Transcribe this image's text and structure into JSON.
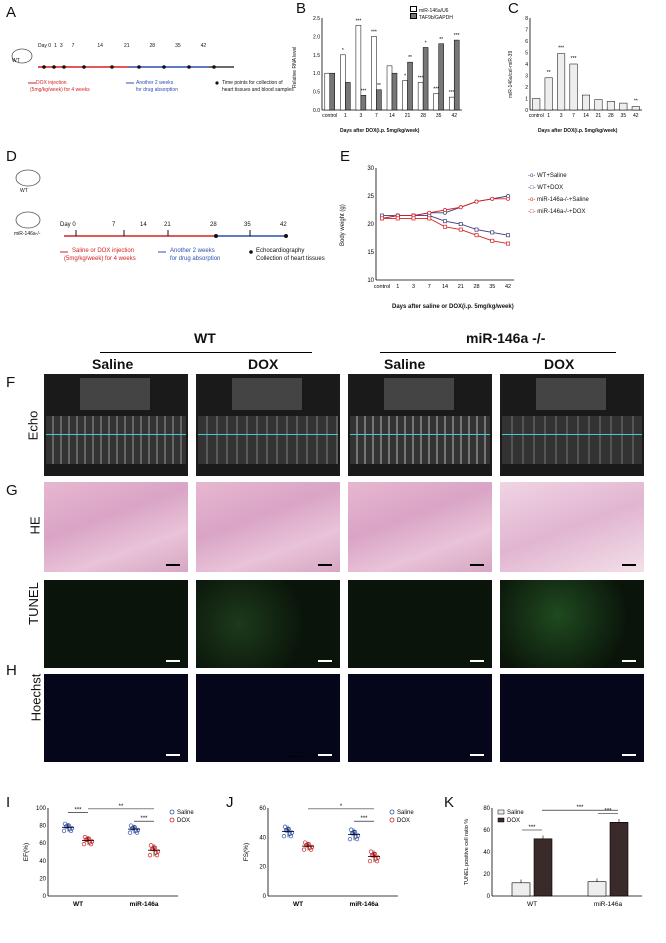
{
  "panels": {
    "A": {
      "letter": "A",
      "wt_label": "WT",
      "timeline_days": [
        "Day 0",
        "1",
        "3",
        "7",
        "14",
        "21",
        "28",
        "35",
        "42"
      ],
      "legend_dox": "DOX injection",
      "legend_dox_dose": "(5mg/kg/week) for 4 weeks",
      "legend_abs": "Another 2 weeks",
      "legend_abs2": "for drug absorption",
      "legend_time": "Time points for collection of",
      "legend_time2": "heart tissues and blood samples"
    },
    "B": {
      "letter": "B",
      "ylabel": "Relative RNA level",
      "xlabel": "Days after DOX(i.p. 5mg/kg/week)",
      "legend": [
        "miR-146a/U6",
        "TAF9b/GAPDH"
      ]
    },
    "C": {
      "letter": "C",
      "ylabel": "miR-146a/cel-miR-39",
      "xlabel": "Days after DOX(i.p. 5mg/kg/week)"
    },
    "D": {
      "letter": "D",
      "wt_label": "WT",
      "ko_label": "miR-146a-/-",
      "timeline_days": [
        "Day 0",
        "7",
        "14",
        "21",
        "28",
        "35",
        "42"
      ],
      "legend_inj": "Saline or DOX injection",
      "legend_inj_dose": "(5mg/kg/week) for 4 weeks",
      "legend_abs": "Another 2 weeks",
      "legend_abs2": "for drug absorption",
      "legend_echo": "Echocardiography",
      "legend_coll": "Collection of heart tissues"
    },
    "E": {
      "letter": "E",
      "ylabel": "Body weight (g)",
      "xlabel": "Days after saline or DOX(i.p. 5mg/kg/week)",
      "legend": [
        "WT+Saline",
        "WT+DOX",
        "miR-146a-/-+Saline",
        "miR-146a-/-+DOX"
      ]
    },
    "headers": {
      "wt": "WT",
      "ko": "miR-146a  -/-",
      "saline1": "Saline",
      "dox1": "DOX",
      "saline2": "Saline",
      "dox2": "DOX"
    },
    "F": {
      "letter": "F",
      "row": "Echo"
    },
    "G": {
      "letter": "G",
      "row": "HE",
      "row2": "TUNEL"
    },
    "H": {
      "letter": "H",
      "row": "Hoechst"
    },
    "I": {
      "letter": "I",
      "ylabel": "EF(%)",
      "groups": [
        "WT",
        "miR-146a"
      ],
      "legend": [
        "Saline",
        "DOX"
      ],
      "sig": [
        "***",
        "**",
        "***"
      ]
    },
    "J": {
      "letter": "J",
      "ylabel": "FS(%)",
      "groups": [
        "WT",
        "miR-146a"
      ],
      "legend": [
        "Saline",
        "DOX"
      ],
      "sig": [
        "***",
        "*",
        "***"
      ]
    },
    "K": {
      "letter": "K",
      "ylabel": "TUNEL positive cell ratio %",
      "groups": [
        "WT",
        "miR-146a"
      ],
      "legend": [
        "Saline",
        "DOX"
      ],
      "sig": [
        "***",
        "***",
        "***"
      ]
    }
  },
  "colors": {
    "red": "#d62020",
    "blue": "#2d4fb0",
    "navy": "#3a3a7a",
    "gray": "#7a7a7a",
    "dark": "#222"
  },
  "chart_data": [
    {
      "id": "B",
      "type": "bar",
      "categories": [
        "control",
        "1",
        "3",
        "7",
        "14",
        "21",
        "28",
        "35",
        "42"
      ],
      "series": [
        {
          "name": "miR-146a/U6",
          "values": [
            1.0,
            1.5,
            2.3,
            2.0,
            1.2,
            0.8,
            0.75,
            0.45,
            0.35
          ]
        },
        {
          "name": "TAF9b/GAPDH",
          "values": [
            1.0,
            0.75,
            0.4,
            0.55,
            1.0,
            1.3,
            1.7,
            1.8,
            1.9
          ]
        }
      ],
      "ylim": [
        0,
        2.5
      ],
      "yticks": [
        0,
        0.5,
        1.0,
        1.5,
        2.0,
        2.5
      ],
      "sig_top": [
        "",
        "*",
        "***",
        "***",
        "",
        "*",
        "***",
        "***",
        "***"
      ],
      "sig_bottom": [
        "",
        "",
        "***",
        "**",
        "",
        "**",
        "*",
        "**",
        "***"
      ]
    },
    {
      "id": "C",
      "type": "bar",
      "categories": [
        "control",
        "1",
        "3",
        "7",
        "14",
        "21",
        "28",
        "35",
        "42"
      ],
      "values": [
        1.0,
        2.8,
        4.9,
        4.0,
        1.3,
        0.9,
        0.75,
        0.6,
        0.3
      ],
      "ylim": [
        0,
        8
      ],
      "yticks": [
        0,
        1,
        2,
        3,
        4,
        5,
        6,
        7,
        8
      ],
      "sig": [
        "",
        "**",
        "***",
        "***",
        "",
        "",
        "",
        "",
        "**"
      ]
    },
    {
      "id": "E",
      "type": "line",
      "categories": [
        "control",
        "1",
        "3",
        "7",
        "14",
        "21",
        "28",
        "35",
        "42"
      ],
      "series": [
        {
          "name": "WT+Saline",
          "values": [
            21,
            21.5,
            21.5,
            22,
            22,
            23,
            24,
            24.5,
            25
          ]
        },
        {
          "name": "WT+DOX",
          "values": [
            21.5,
            21.5,
            21.5,
            21.5,
            20.5,
            20,
            19,
            18.5,
            18
          ]
        },
        {
          "name": "miR-146a-/-+Saline",
          "values": [
            21,
            21.5,
            21.5,
            22,
            22.5,
            23,
            24,
            24.5,
            24.5
          ]
        },
        {
          "name": "miR-146a-/-+DOX",
          "values": [
            21,
            21,
            21,
            21,
            19.5,
            19,
            18,
            17,
            16.5
          ]
        }
      ],
      "ylim": [
        10,
        30
      ],
      "yticks": [
        10,
        15,
        20,
        25,
        30
      ]
    },
    {
      "id": "I",
      "type": "scatter",
      "groups": [
        "WT",
        "miR-146a"
      ],
      "series": [
        {
          "name": "Saline",
          "means": [
            78,
            76
          ],
          "sd": [
            5,
            5
          ]
        },
        {
          "name": "DOX",
          "means": [
            63,
            52
          ],
          "sd": [
            5,
            7
          ]
        }
      ],
      "ylim": [
        0,
        100
      ],
      "yticks": [
        0,
        20,
        40,
        60,
        80,
        100
      ]
    },
    {
      "id": "J",
      "type": "scatter",
      "groups": [
        "WT",
        "miR-146a"
      ],
      "series": [
        {
          "name": "Saline",
          "means": [
            44,
            42
          ],
          "sd": [
            4,
            4
          ]
        },
        {
          "name": "DOX",
          "means": [
            34,
            27
          ],
          "sd": [
            3,
            4
          ]
        }
      ],
      "ylim": [
        0,
        60
      ],
      "yticks": [
        0,
        20,
        40,
        60
      ]
    },
    {
      "id": "K",
      "type": "bar",
      "groups": [
        "WT",
        "miR-146a"
      ],
      "series": [
        {
          "name": "Saline",
          "values": [
            12,
            13
          ]
        },
        {
          "name": "DOX",
          "values": [
            52,
            67
          ]
        }
      ],
      "ylim": [
        0,
        80
      ],
      "yticks": [
        0,
        20,
        40,
        60,
        80
      ]
    }
  ]
}
